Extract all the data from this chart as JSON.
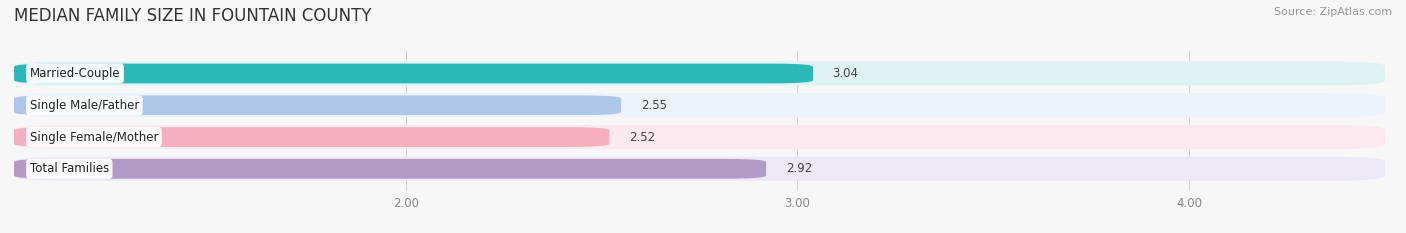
{
  "title": "MEDIAN FAMILY SIZE IN FOUNTAIN COUNTY",
  "source": "Source: ZipAtlas.com",
  "categories": [
    "Married-Couple",
    "Single Male/Father",
    "Single Female/Mother",
    "Total Families"
  ],
  "values": [
    3.04,
    2.55,
    2.52,
    2.92
  ],
  "bar_colors": [
    "#2ab8b8",
    "#aec6e8",
    "#f4afc0",
    "#b39ac4"
  ],
  "bar_row_bg": [
    "#dff2f2",
    "#eef2fa",
    "#fce8ef",
    "#ede8f5"
  ],
  "xlim": [
    1.0,
    4.5
  ],
  "xstart": 1.0,
  "xticks": [
    2.0,
    3.0,
    4.0
  ],
  "xtick_labels": [
    "2.00",
    "3.00",
    "4.00"
  ],
  "figsize": [
    14.06,
    2.33
  ],
  "dpi": 100,
  "bar_height": 0.62,
  "title_fontsize": 12,
  "label_fontsize": 8.5,
  "value_fontsize": 8.5,
  "source_fontsize": 8,
  "background_color": "#f7f7f7"
}
